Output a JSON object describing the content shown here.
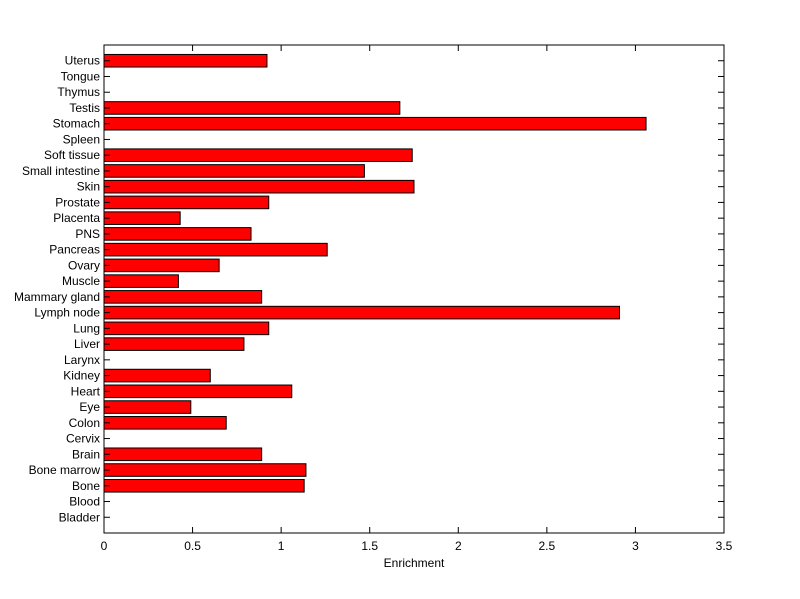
{
  "chart_data": {
    "type": "bar",
    "orientation": "horizontal",
    "title": "",
    "xlabel": "Enrichment",
    "ylabel": "",
    "xlim": [
      0,
      3.5
    ],
    "xticks": [
      0,
      0.5,
      1,
      1.5,
      2,
      2.5,
      3,
      3.5
    ],
    "xtick_labels": [
      "0",
      "0.5",
      "1",
      "1.5",
      "2",
      "2.5",
      "3",
      "3.5"
    ],
    "grid": false,
    "legend": "none",
    "bar_color": "#ff0000",
    "categories": [
      "Bladder",
      "Blood",
      "Bone",
      "Bone marrow",
      "Brain",
      "Cervix",
      "Colon",
      "Eye",
      "Heart",
      "Kidney",
      "Larynx",
      "Liver",
      "Lung",
      "Lymph node",
      "Mammary gland",
      "Muscle",
      "Ovary",
      "Pancreas",
      "PNS",
      "Placenta",
      "Prostate",
      "Skin",
      "Small intestine",
      "Soft tissue",
      "Spleen",
      "Stomach",
      "Testis",
      "Thymus",
      "Tongue",
      "Uterus"
    ],
    "values": [
      0,
      0,
      1.13,
      1.14,
      0.89,
      0,
      0.69,
      0.49,
      1.06,
      0.6,
      0,
      0.79,
      0.93,
      2.91,
      0.89,
      0.42,
      0.65,
      1.26,
      0.83,
      0.43,
      0.93,
      1.75,
      1.47,
      1.74,
      0,
      3.06,
      1.67,
      0,
      0,
      0.92
    ]
  }
}
